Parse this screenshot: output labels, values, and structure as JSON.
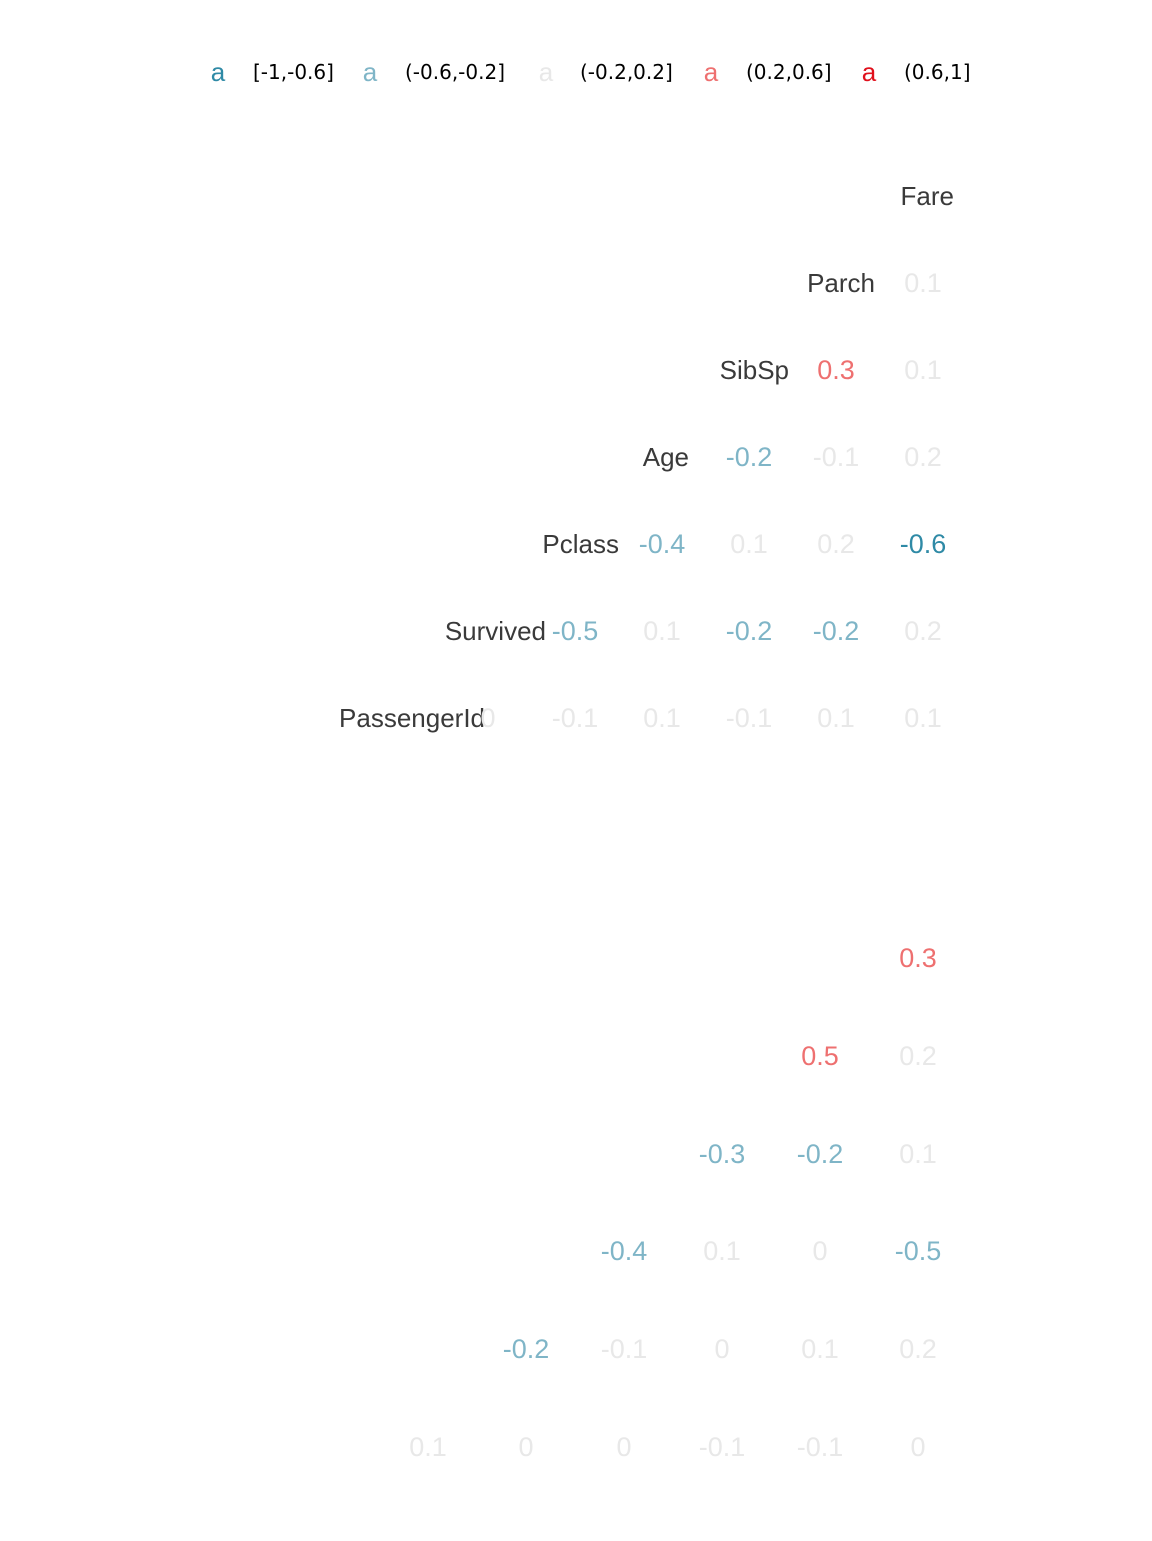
{
  "chart_data": [
    {
      "type": "heatmap",
      "title": "",
      "legend_position": "top",
      "legend": [
        {
          "key": "a",
          "label": "[-1,-0.6]",
          "color": "#2f8aa6"
        },
        {
          "key": "a",
          "label": "(-0.6,-0.2]",
          "color": "#7fb5c7"
        },
        {
          "key": "a",
          "label": "(-0.2,0.2]",
          "color": "#e8e8e8"
        },
        {
          "key": "a",
          "label": "(0.2,0.6]",
          "color": "#ee7070"
        },
        {
          "key": "a",
          "label": "(0.6,1]",
          "color": "#e0101c"
        }
      ],
      "variables": [
        "PassengerId",
        "Survived",
        "Pclass",
        "Age",
        "SibSp",
        "Parch",
        "Fare"
      ],
      "label_color": "#3a3a3a",
      "matrix": [
        [
          "0",
          "-0.1",
          "0.1",
          "-0.1",
          "0.1",
          "0.1"
        ],
        [
          "-0.5",
          "0.1",
          "-0.2",
          "-0.2",
          "0.2"
        ],
        [
          "-0.4",
          "0.1",
          "0.2",
          "-0.6"
        ],
        [
          "-0.2",
          "-0.1",
          "0.2"
        ],
        [
          "0.3",
          "0.1"
        ],
        [
          "0.1"
        ]
      ]
    },
    {
      "type": "heatmap",
      "title": "",
      "matrix": [
        [
          "0.1",
          "0",
          "0",
          "-0.1",
          "-0.1",
          "0"
        ],
        [
          "-0.2",
          "-0.1",
          "0",
          "0.1",
          "0.2"
        ],
        [
          "-0.4",
          "0.1",
          "0",
          "-0.5"
        ],
        [
          "-0.3",
          "-0.2",
          "0.1"
        ],
        [
          "0.5",
          "0.2"
        ],
        [
          "0.3"
        ]
      ]
    }
  ]
}
